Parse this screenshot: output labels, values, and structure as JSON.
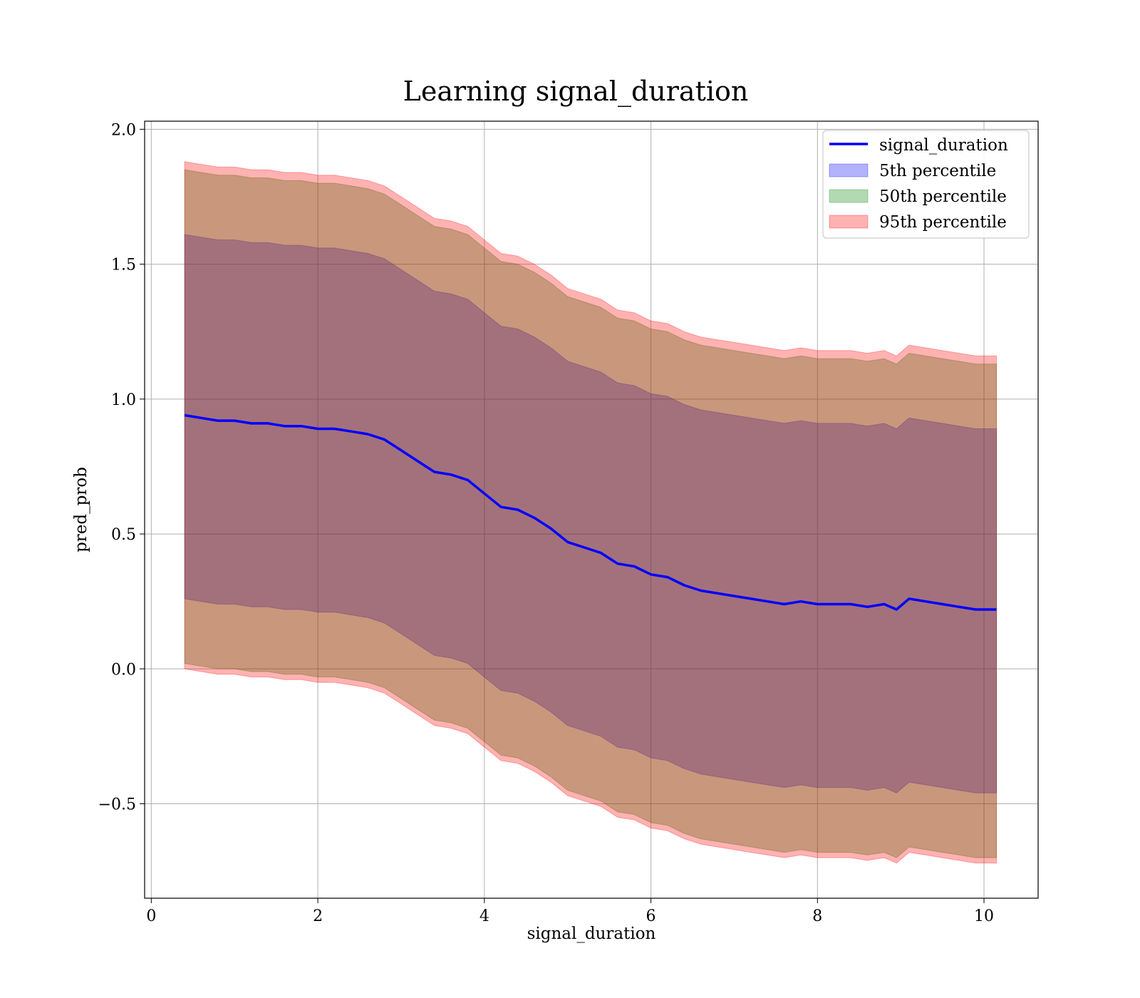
{
  "chart_data": {
    "type": "line",
    "title": "Learning signal_duration",
    "xlabel": "signal_duration",
    "ylabel": "pred_prob",
    "xlim": [
      -0.08,
      10.65
    ],
    "ylim": [
      -0.85,
      2.03
    ],
    "xticks": [
      0,
      2,
      4,
      6,
      8,
      10
    ],
    "xtick_labels": [
      "0",
      "2",
      "4",
      "6",
      "8",
      "10"
    ],
    "yticks": [
      -0.5,
      0.0,
      0.5,
      1.0,
      1.5,
      2.0
    ],
    "ytick_labels": [
      "−0.5",
      "0.0",
      "0.5",
      "1.0",
      "1.5",
      "2.0"
    ],
    "grid": true,
    "legend_position": "top-right",
    "x": [
      0.4,
      0.6,
      0.8,
      1.0,
      1.2,
      1.4,
      1.6,
      1.8,
      2.0,
      2.2,
      2.4,
      2.6,
      2.8,
      3.0,
      3.2,
      3.4,
      3.6,
      3.8,
      4.0,
      4.2,
      4.4,
      4.6,
      4.8,
      5.0,
      5.2,
      5.4,
      5.6,
      5.8,
      6.0,
      6.2,
      6.4,
      6.6,
      6.8,
      7.0,
      7.2,
      7.4,
      7.6,
      7.8,
      8.0,
      8.2,
      8.4,
      8.6,
      8.8,
      8.95,
      9.1,
      9.3,
      9.5,
      9.7,
      9.9,
      10.15
    ],
    "series": [
      {
        "name": "signal_duration",
        "kind": "line",
        "color": "#0000ff",
        "values": [
          0.94,
          0.93,
          0.92,
          0.92,
          0.91,
          0.91,
          0.9,
          0.9,
          0.89,
          0.89,
          0.88,
          0.87,
          0.85,
          0.81,
          0.77,
          0.73,
          0.72,
          0.7,
          0.65,
          0.6,
          0.59,
          0.56,
          0.52,
          0.47,
          0.45,
          0.43,
          0.39,
          0.38,
          0.35,
          0.34,
          0.31,
          0.29,
          0.28,
          0.27,
          0.26,
          0.25,
          0.24,
          0.25,
          0.24,
          0.24,
          0.24,
          0.23,
          0.24,
          0.22,
          0.26,
          0.25,
          0.24,
          0.23,
          0.22,
          0.22
        ]
      },
      {
        "name": "5th percentile",
        "kind": "band",
        "color": "#0000ff",
        "opacity": 0.3,
        "lower": [
          0.26,
          0.25,
          0.24,
          0.24,
          0.23,
          0.23,
          0.22,
          0.22,
          0.21,
          0.21,
          0.2,
          0.19,
          0.17,
          0.13,
          0.09,
          0.05,
          0.04,
          0.02,
          -0.03,
          -0.08,
          -0.09,
          -0.12,
          -0.16,
          -0.21,
          -0.23,
          -0.25,
          -0.29,
          -0.3,
          -0.33,
          -0.34,
          -0.37,
          -0.39,
          -0.4,
          -0.41,
          -0.42,
          -0.43,
          -0.44,
          -0.43,
          -0.44,
          -0.44,
          -0.44,
          -0.45,
          -0.44,
          -0.46,
          -0.42,
          -0.43,
          -0.44,
          -0.45,
          -0.46,
          -0.46
        ],
        "upper": [
          1.61,
          1.6,
          1.59,
          1.59,
          1.58,
          1.58,
          1.57,
          1.57,
          1.56,
          1.56,
          1.55,
          1.54,
          1.52,
          1.48,
          1.44,
          1.4,
          1.39,
          1.37,
          1.32,
          1.27,
          1.26,
          1.23,
          1.19,
          1.14,
          1.12,
          1.1,
          1.06,
          1.05,
          1.02,
          1.01,
          0.98,
          0.96,
          0.95,
          0.94,
          0.93,
          0.92,
          0.91,
          0.92,
          0.91,
          0.91,
          0.91,
          0.9,
          0.91,
          0.89,
          0.93,
          0.92,
          0.91,
          0.9,
          0.89,
          0.89
        ]
      },
      {
        "name": "50th percentile",
        "kind": "band",
        "color": "#008000",
        "opacity": 0.3,
        "lower": [
          0.02,
          0.01,
          0.0,
          0.0,
          -0.01,
          -0.01,
          -0.02,
          -0.02,
          -0.03,
          -0.03,
          -0.04,
          -0.05,
          -0.07,
          -0.11,
          -0.15,
          -0.19,
          -0.2,
          -0.22,
          -0.27,
          -0.32,
          -0.33,
          -0.36,
          -0.4,
          -0.45,
          -0.47,
          -0.49,
          -0.53,
          -0.54,
          -0.57,
          -0.58,
          -0.61,
          -0.63,
          -0.64,
          -0.65,
          -0.66,
          -0.67,
          -0.68,
          -0.67,
          -0.68,
          -0.68,
          -0.68,
          -0.69,
          -0.68,
          -0.7,
          -0.66,
          -0.67,
          -0.68,
          -0.69,
          -0.7,
          -0.7
        ],
        "upper": [
          1.85,
          1.84,
          1.83,
          1.83,
          1.82,
          1.82,
          1.81,
          1.81,
          1.8,
          1.8,
          1.79,
          1.78,
          1.76,
          1.72,
          1.68,
          1.64,
          1.63,
          1.61,
          1.56,
          1.51,
          1.5,
          1.47,
          1.43,
          1.38,
          1.36,
          1.34,
          1.3,
          1.29,
          1.26,
          1.25,
          1.22,
          1.2,
          1.19,
          1.18,
          1.17,
          1.16,
          1.15,
          1.16,
          1.15,
          1.15,
          1.15,
          1.14,
          1.15,
          1.13,
          1.17,
          1.16,
          1.15,
          1.14,
          1.13,
          1.13
        ]
      },
      {
        "name": "95th percentile",
        "kind": "band",
        "color": "#ff0000",
        "opacity": 0.3,
        "lower": [
          0.0,
          -0.01,
          -0.02,
          -0.02,
          -0.03,
          -0.03,
          -0.04,
          -0.04,
          -0.05,
          -0.05,
          -0.06,
          -0.07,
          -0.09,
          -0.13,
          -0.17,
          -0.21,
          -0.22,
          -0.24,
          -0.29,
          -0.34,
          -0.35,
          -0.38,
          -0.42,
          -0.47,
          -0.49,
          -0.51,
          -0.55,
          -0.56,
          -0.59,
          -0.6,
          -0.63,
          -0.65,
          -0.66,
          -0.67,
          -0.68,
          -0.69,
          -0.7,
          -0.69,
          -0.7,
          -0.7,
          -0.7,
          -0.71,
          -0.7,
          -0.72,
          -0.68,
          -0.69,
          -0.7,
          -0.71,
          -0.72,
          -0.72
        ],
        "upper": [
          1.88,
          1.87,
          1.86,
          1.86,
          1.85,
          1.85,
          1.84,
          1.84,
          1.83,
          1.83,
          1.82,
          1.81,
          1.79,
          1.75,
          1.71,
          1.67,
          1.66,
          1.64,
          1.59,
          1.54,
          1.53,
          1.5,
          1.46,
          1.41,
          1.39,
          1.37,
          1.33,
          1.32,
          1.29,
          1.28,
          1.25,
          1.23,
          1.22,
          1.21,
          1.2,
          1.19,
          1.18,
          1.19,
          1.18,
          1.18,
          1.18,
          1.17,
          1.18,
          1.16,
          1.2,
          1.19,
          1.18,
          1.17,
          1.16,
          1.16
        ]
      }
    ]
  }
}
